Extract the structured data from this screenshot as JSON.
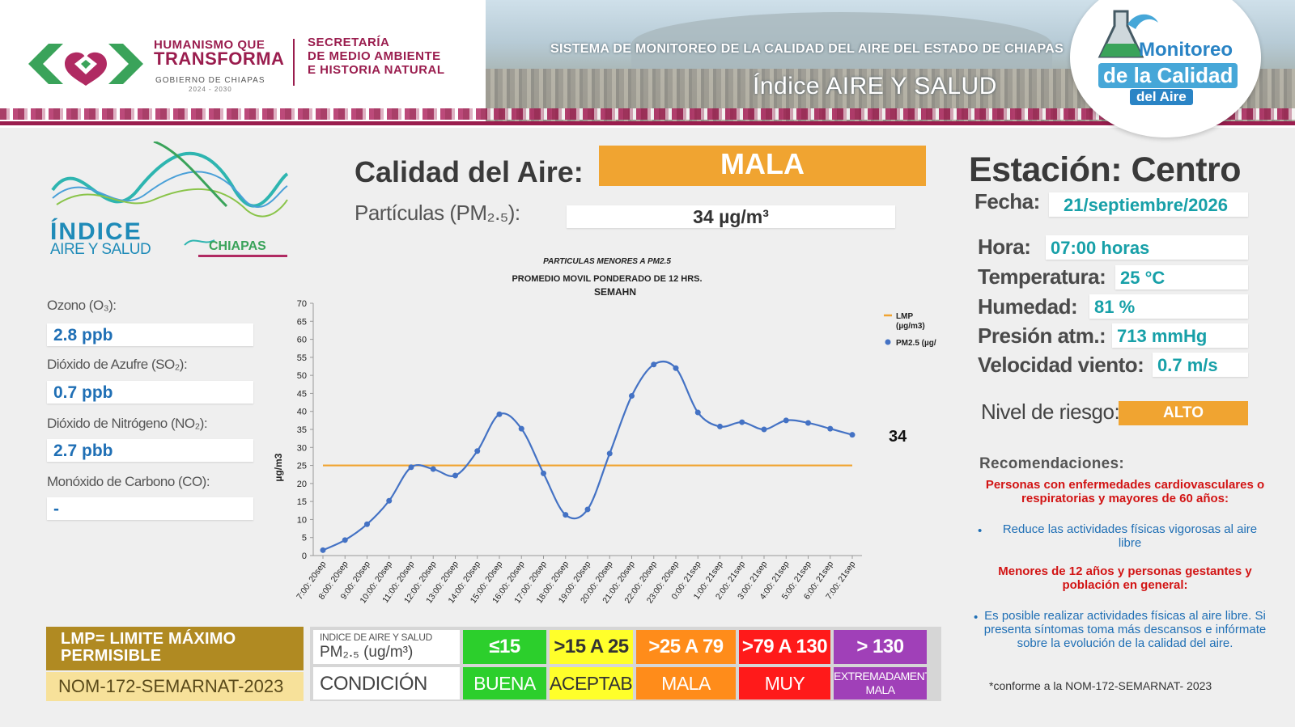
{
  "header": {
    "gov_line1": "HUMANISMO QUE",
    "gov_line2": "TRANSFORMA",
    "gov_line3": "GOBIERNO DE CHIAPAS",
    "gov_years": "2024 - 2030",
    "secretaria_1": "SECRETARÍA",
    "secretaria_2": "DE MEDIO AMBIENTE",
    "secretaria_3": "E HISTORIA NATURAL",
    "system_title": "SISTEMA DE MONITOREO DE LA CALIDAD DEL AIRE DEL ESTADO DE CHIAPAS",
    "index_title": "Índice AIRE Y SALUD",
    "badge_1": "Monitoreo",
    "badge_2": "de la Calidad",
    "badge_3": "del Aire"
  },
  "logo": {
    "line1": "ÍNDICE",
    "line2": "AIRE Y SALUD",
    "line3": "CHIAPAS"
  },
  "pollutants": [
    {
      "label": "Ozono (O₃):",
      "value": "2.8 ppb"
    },
    {
      "label": "Dióxido de Azufre (SO₂):",
      "value": "0.7 ppb"
    },
    {
      "label": "Dióxido de Nitrógeno (NO₂):",
      "value": "2.7 pbb"
    },
    {
      "label": "Monóxido de Carbono (CO):",
      "value": "-"
    }
  ],
  "air": {
    "label": "Calidad del Aire:",
    "status": "MALA",
    "status_color": "#f0a431",
    "particles_label": "Partículas (PM₂.₅):",
    "particles_value": "34 µg/m³"
  },
  "station": {
    "title": "Estación: Centro",
    "fecha_label": "Fecha:",
    "fecha_value": "21/septiembre/2026",
    "hora_label": "Hora:",
    "hora_value": "07:00 horas",
    "temp_label": "Temperatura:",
    "temp_value": "25 °C",
    "hum_label": "Humedad:",
    "hum_value": "81 %",
    "pres_label": "Presión atm.:",
    "pres_value": "713 mmHg",
    "wind_label": "Velocidad viento:",
    "wind_value": "0.7 m/s",
    "risk_label": "Nivel de riesgo:",
    "risk_value": "ALTO"
  },
  "recommendations": {
    "title": "Recomendaciones:",
    "group1": "Personas con enfermedades cardiovasculares o respiratorias y mayores de 60 años:",
    "advice1": "Reduce las actividades físicas vigorosas al aire libre",
    "group2": "Menores de 12 años y personas gestantes y población en general:",
    "advice2": "Es posible realizar actividades físicas al aire libre. Si presenta síntomas toma más descansos e infórmate sobre la evolución de la calidad del aire.",
    "footnote": "*conforme a la NOM-172-SEMARNAT- 2023"
  },
  "legend_table": {
    "lmp_text": "LMP= LIMITE MÁXIMO PERMISIBLE",
    "nom": "NOM-172-SEMARNAT-2023",
    "header_top": "INDICE DE AIRE Y SALUD",
    "header_bottom": "PM₂.₅ (ug/m³)",
    "condition_label": "CONDICIÓN",
    "ranges": [
      {
        "range": "≤15",
        "condition": "BUENA",
        "color": "#2ccf2c",
        "text_color": "#ffffff"
      },
      {
        "range": ">15 A 25",
        "condition": "ACEPTABLE",
        "color": "#ffff2a",
        "text_color": "#333333"
      },
      {
        "range": ">25 A 79",
        "condition": "MALA",
        "color": "#ff8c1a",
        "text_color": "#ffffff"
      },
      {
        "range": ">79 A 130",
        "condition": "MUY MALA",
        "color": "#ff1a1a",
        "text_color": "#ffffff"
      },
      {
        "range": "> 130",
        "condition": "EXTREMADAMENTE MALA",
        "color": "#a040b8",
        "text_color": "#ffffff"
      }
    ]
  },
  "chart_data": {
    "type": "line",
    "title_line1": "PARTICULAS MENORES A PM2.5",
    "title_line2": "PROMEDIO MOVIL PONDERADO DE 12 HRS.",
    "title_line3": "SEMAHN",
    "ylabel": "µg/m3",
    "ylim": [
      0,
      70
    ],
    "yticks": [
      0,
      5,
      10,
      15,
      20,
      25,
      30,
      35,
      40,
      45,
      50,
      55,
      60,
      65,
      70
    ],
    "categories": [
      "7:00: 20sep",
      "8:00: 20sep",
      "9:00: 20sep",
      "10:00: 20sep",
      "11:00: 20sep",
      "12:00: 20sep",
      "13:00: 20sep",
      "14:00: 20sep",
      "15:00: 20sep",
      "16:00: 20sep",
      "17:00: 20sep",
      "18:00: 20sep",
      "19:00: 20sep",
      "20:00: 20sep",
      "21:00: 20sep",
      "22:00: 20sep",
      "23:00: 20sep",
      "0:00: 21sep",
      "1:00: 21sep",
      "2:00: 21sep",
      "3:00: 21sep",
      "4:00: 21sep",
      "5:00: 21sep",
      "6:00: 21sep",
      "7:00: 21sep"
    ],
    "series": [
      {
        "name": "PM2.5  (µg/",
        "values": [
          1.5,
          4.3,
          8.7,
          15.2,
          24.5,
          24.0,
          22.2,
          29.0,
          39.2,
          35.2,
          22.8,
          11.3,
          12.8,
          28.3,
          44.3,
          53.0,
          52.0,
          39.7,
          35.8,
          37.0,
          35.0,
          37.5,
          36.8,
          35.2,
          33.5
        ],
        "color": "#4472c4"
      },
      {
        "name": "LMP (µg/m3)",
        "values": [
          25,
          25,
          25,
          25,
          25,
          25,
          25,
          25,
          25,
          25,
          25,
          25,
          25,
          25,
          25,
          25,
          25,
          25,
          25,
          25,
          25,
          25,
          25,
          25,
          25
        ],
        "color": "#f0a431"
      }
    ],
    "legend_lmp_1": "LMP",
    "legend_lmp_2": "(µg/m3)",
    "legend_pm": "PM2.5  (µg/",
    "last_label": "34",
    "legend_position": "top-right"
  }
}
